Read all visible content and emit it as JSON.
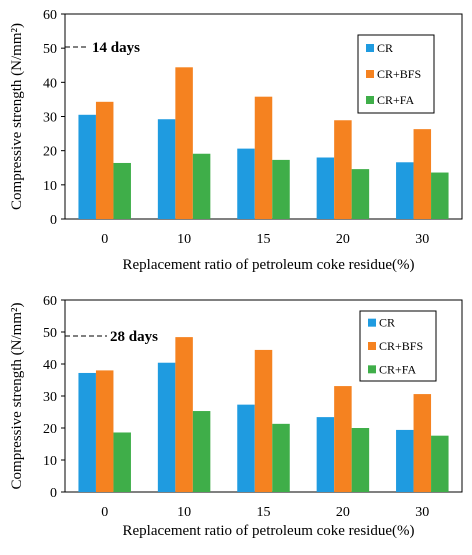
{
  "chart_data": [
    {
      "type": "bar",
      "annotation": "14 days",
      "xlabel": "Replacement ratio of petroleum coke residue(%)",
      "ylabel": "Compressive strength (N/mm²)",
      "ylim": [
        0,
        60
      ],
      "yticks": [
        0,
        10,
        20,
        30,
        40,
        50,
        60
      ],
      "grid": false,
      "legend": "top-right",
      "categories": [
        "0",
        "10",
        "15",
        "20",
        "30"
      ],
      "series": [
        {
          "name": "CR",
          "color": "#1f9be0",
          "values": [
            30.5,
            29.2,
            20.6,
            18.0,
            16.6
          ]
        },
        {
          "name": "CR+BFS",
          "color": "#f58220",
          "values": [
            34.3,
            44.4,
            35.8,
            28.9,
            26.3
          ]
        },
        {
          "name": "CR+FA",
          "color": "#3fae49",
          "values": [
            16.4,
            19.1,
            17.3,
            14.6,
            13.6
          ]
        }
      ]
    },
    {
      "type": "bar",
      "annotation": "28 days",
      "xlabel": "Replacement ratio of petroleum coke residue(%)",
      "ylabel": "Compressive strength (N/mm²)",
      "ylim": [
        0,
        60
      ],
      "yticks": [
        0,
        10,
        20,
        30,
        40,
        50,
        60
      ],
      "grid": false,
      "legend": "top-right",
      "categories": [
        "0",
        "10",
        "15",
        "20",
        "30"
      ],
      "series": [
        {
          "name": "CR",
          "color": "#1f9be0",
          "values": [
            37.2,
            40.4,
            27.3,
            23.4,
            19.4
          ]
        },
        {
          "name": "CR+BFS",
          "color": "#f58220",
          "values": [
            38.0,
            48.4,
            44.4,
            33.1,
            30.6
          ]
        },
        {
          "name": "CR+FA",
          "color": "#3fae49",
          "values": [
            18.6,
            25.3,
            21.3,
            20.0,
            17.6
          ]
        }
      ]
    }
  ]
}
